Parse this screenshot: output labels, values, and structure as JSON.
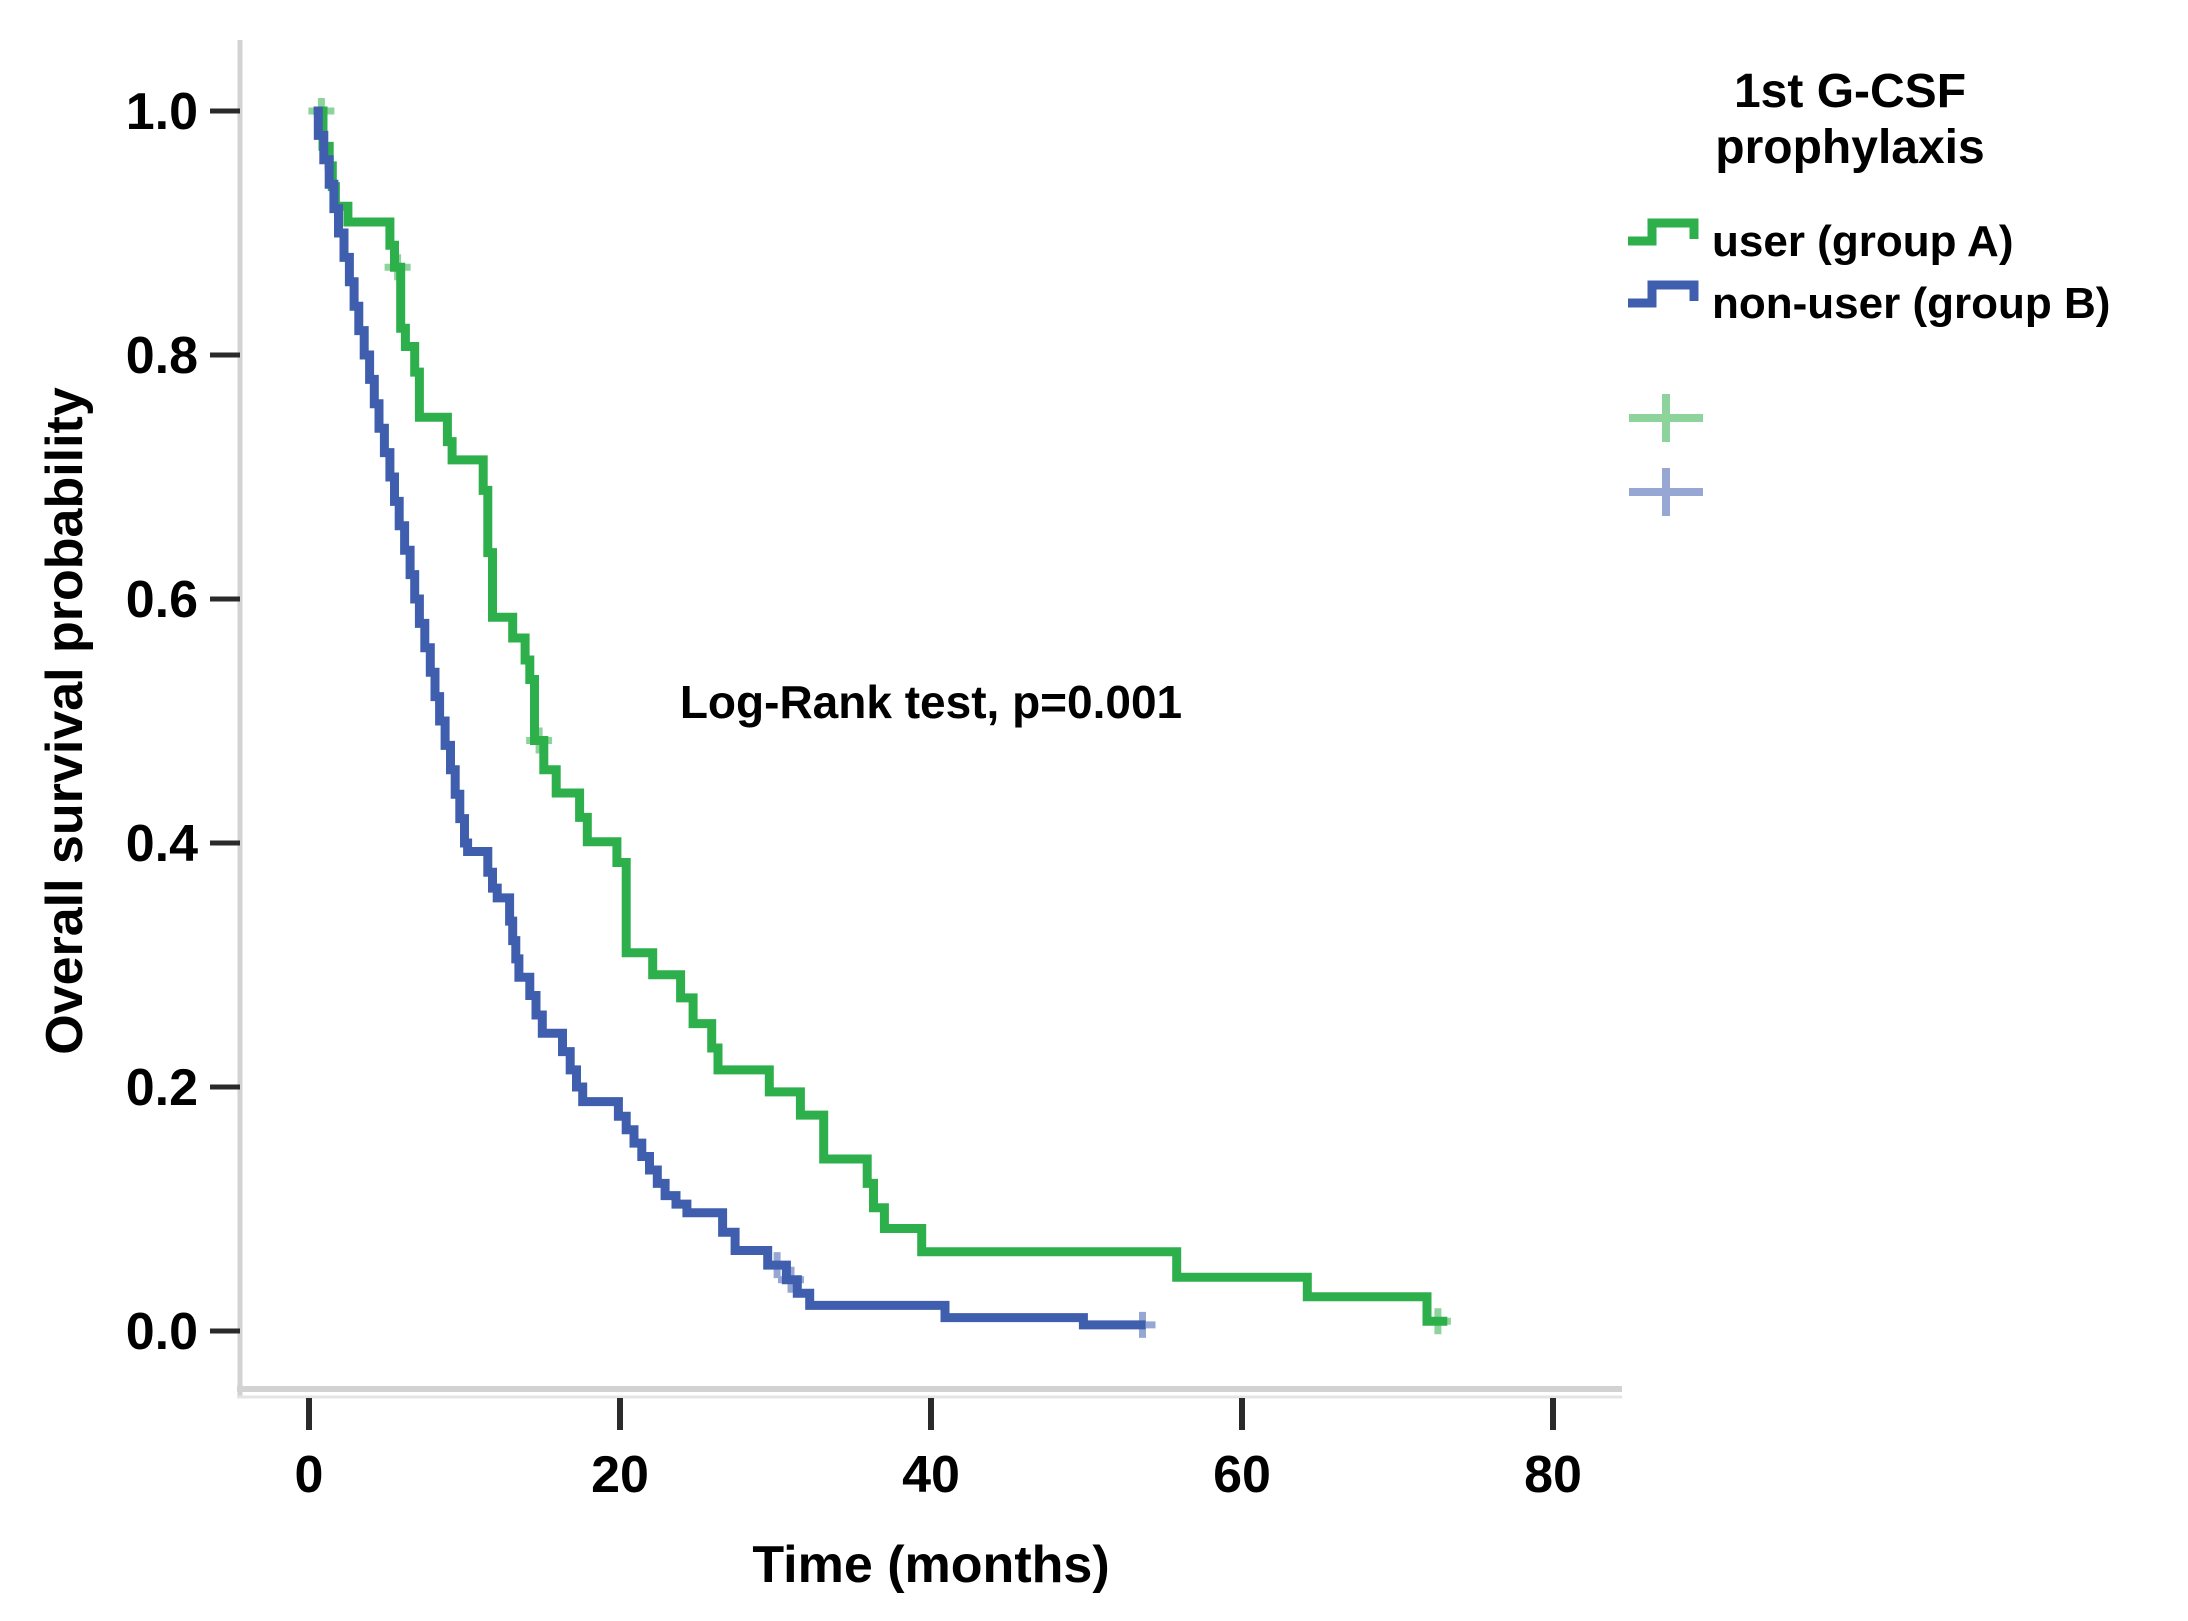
{
  "figure": {
    "background": "#ffffff",
    "legend": {
      "title_lines": [
        "1st G-CSF",
        "prophylaxis"
      ]
    }
  },
  "chart_data": {
    "type": "line",
    "subtype": "kaplan-meier-step",
    "title": "",
    "xlabel": "Time (months)",
    "ylabel": "Overall survival probability",
    "annotation": "Log-Rank test, p=0.001",
    "legend_title": "1st G-CSF prophylaxis",
    "x_ticks": [
      0,
      20,
      40,
      60,
      80
    ],
    "y_ticks": [
      1.0,
      0.8,
      0.6,
      0.4,
      0.2,
      0.0
    ],
    "xlim": [
      -4.5,
      84
    ],
    "ylim": [
      -0.05,
      1.05
    ],
    "grid": false,
    "legend_position": "top-right",
    "axis_color": "#d2d2d2",
    "tick_color": "#2a2a2a",
    "series": [
      {
        "name": "user (group A)",
        "color": "#2db04b",
        "end_t": 73.2,
        "steps": [
          [
            0.3,
            1.0
          ],
          [
            0.9,
            0.971
          ],
          [
            1.3,
            0.955
          ],
          [
            1.5,
            0.938
          ],
          [
            1.7,
            0.922
          ],
          [
            2.5,
            0.909
          ],
          [
            5.2,
            0.89
          ],
          [
            5.5,
            0.872
          ],
          [
            5.9,
            0.822
          ],
          [
            6.2,
            0.807
          ],
          [
            6.8,
            0.786
          ],
          [
            7.1,
            0.749
          ],
          [
            8.9,
            0.729
          ],
          [
            9.2,
            0.714
          ],
          [
            11.2,
            0.689
          ],
          [
            11.5,
            0.638
          ],
          [
            11.8,
            0.585
          ],
          [
            13.1,
            0.568
          ],
          [
            13.9,
            0.55
          ],
          [
            14.2,
            0.534
          ],
          [
            14.5,
            0.484
          ],
          [
            15.1,
            0.46
          ],
          [
            15.9,
            0.441
          ],
          [
            17.4,
            0.421
          ],
          [
            17.9,
            0.401
          ],
          [
            19.8,
            0.384
          ],
          [
            20.4,
            0.31
          ],
          [
            22.1,
            0.292
          ],
          [
            23.9,
            0.273
          ],
          [
            24.7,
            0.252
          ],
          [
            25.9,
            0.232
          ],
          [
            26.3,
            0.214
          ],
          [
            29.6,
            0.196
          ],
          [
            31.6,
            0.177
          ],
          [
            33.1,
            0.141
          ],
          [
            35.9,
            0.121
          ],
          [
            36.3,
            0.101
          ],
          [
            37.0,
            0.084
          ],
          [
            39.4,
            0.065
          ],
          [
            55.8,
            0.044
          ],
          [
            64.2,
            0.028
          ],
          [
            71.9,
            0.008
          ]
        ],
        "censors": [
          [
            0.8,
            1.0
          ],
          [
            5.7,
            0.872
          ],
          [
            14.8,
            0.484
          ],
          [
            72.6,
            0.008
          ]
        ]
      },
      {
        "name": "non-user (group B)",
        "color": "#3f5fae",
        "end_t": 53.8,
        "steps": [
          [
            0.3,
            1.0
          ],
          [
            0.6,
            0.98
          ],
          [
            0.95,
            0.96
          ],
          [
            1.3,
            0.94
          ],
          [
            1.6,
            0.92
          ],
          [
            1.9,
            0.9
          ],
          [
            2.25,
            0.88
          ],
          [
            2.6,
            0.86
          ],
          [
            2.9,
            0.84
          ],
          [
            3.2,
            0.82
          ],
          [
            3.55,
            0.8
          ],
          [
            3.9,
            0.78
          ],
          [
            4.2,
            0.76
          ],
          [
            4.5,
            0.74
          ],
          [
            4.85,
            0.72
          ],
          [
            5.2,
            0.7
          ],
          [
            5.5,
            0.68
          ],
          [
            5.8,
            0.66
          ],
          [
            6.15,
            0.64
          ],
          [
            6.5,
            0.62
          ],
          [
            6.8,
            0.6
          ],
          [
            7.1,
            0.58
          ],
          [
            7.45,
            0.56
          ],
          [
            7.8,
            0.54
          ],
          [
            8.1,
            0.52
          ],
          [
            8.4,
            0.5
          ],
          [
            8.75,
            0.48
          ],
          [
            9.1,
            0.46
          ],
          [
            9.4,
            0.44
          ],
          [
            9.7,
            0.42
          ],
          [
            10.0,
            0.4
          ],
          [
            10.2,
            0.393
          ],
          [
            11.5,
            0.376
          ],
          [
            11.8,
            0.363
          ],
          [
            12.1,
            0.355
          ],
          [
            12.9,
            0.336
          ],
          [
            13.1,
            0.32
          ],
          [
            13.3,
            0.305
          ],
          [
            13.5,
            0.29
          ],
          [
            14.2,
            0.275
          ],
          [
            14.6,
            0.259
          ],
          [
            15.0,
            0.244
          ],
          [
            16.3,
            0.229
          ],
          [
            16.8,
            0.214
          ],
          [
            17.2,
            0.2
          ],
          [
            17.6,
            0.188
          ],
          [
            19.9,
            0.176
          ],
          [
            20.4,
            0.165
          ],
          [
            20.9,
            0.154
          ],
          [
            21.4,
            0.143
          ],
          [
            21.9,
            0.132
          ],
          [
            22.4,
            0.121
          ],
          [
            22.9,
            0.111
          ],
          [
            23.6,
            0.104
          ],
          [
            24.3,
            0.097
          ],
          [
            26.6,
            0.081
          ],
          [
            27.4,
            0.066
          ],
          [
            29.5,
            0.054
          ],
          [
            30.7,
            0.042
          ],
          [
            31.4,
            0.031
          ],
          [
            32.2,
            0.021
          ],
          [
            40.9,
            0.011
          ],
          [
            49.8,
            0.005
          ]
        ],
        "censors": [
          [
            30.1,
            0.054
          ],
          [
            31.0,
            0.042
          ],
          [
            53.6,
            0.005
          ]
        ]
      }
    ]
  }
}
